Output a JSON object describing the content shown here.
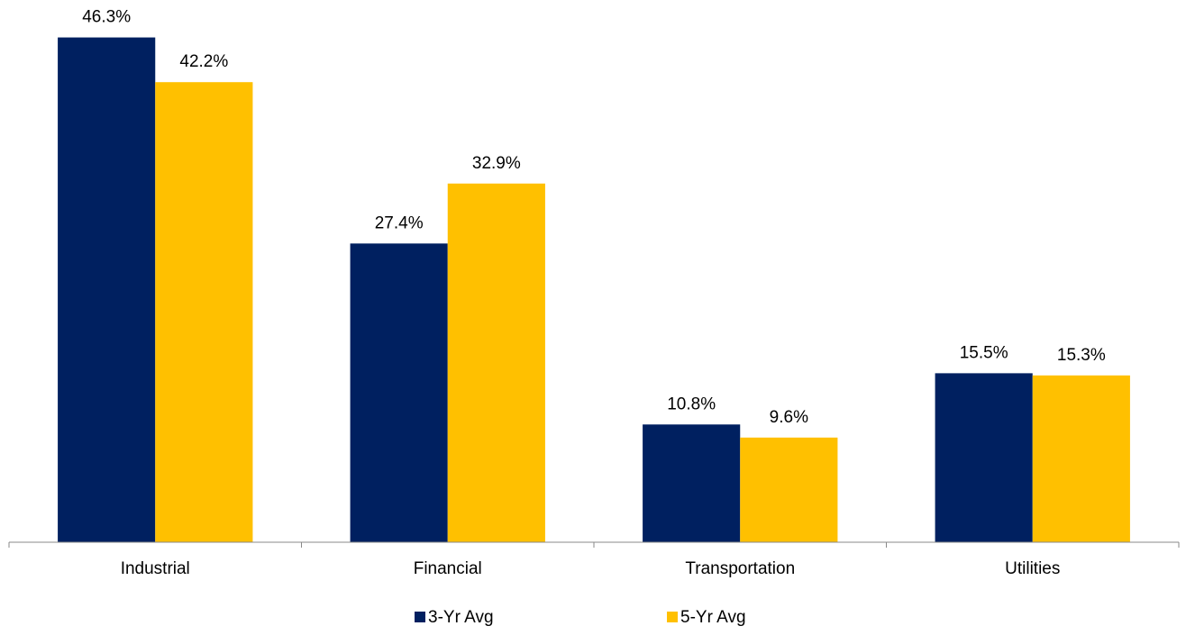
{
  "chart_data": {
    "type": "bar",
    "categories": [
      "Industrial",
      "Financial",
      "Transportation",
      "Utilities"
    ],
    "series": [
      {
        "name": "3-Yr Avg",
        "color": "#002060",
        "values": [
          46.3,
          27.4,
          10.8,
          15.5
        ],
        "value_labels": [
          "46.3%",
          "27.4%",
          "10.8%",
          "15.5%"
        ]
      },
      {
        "name": "5-Yr Avg",
        "color": "#ffc000",
        "values": [
          42.2,
          32.9,
          9.6,
          15.3
        ],
        "value_labels": [
          "42.2%",
          "32.9%",
          "9.6%",
          "15.3%"
        ]
      }
    ],
    "ylim": [
      0,
      48
    ],
    "legend": "bottom"
  }
}
